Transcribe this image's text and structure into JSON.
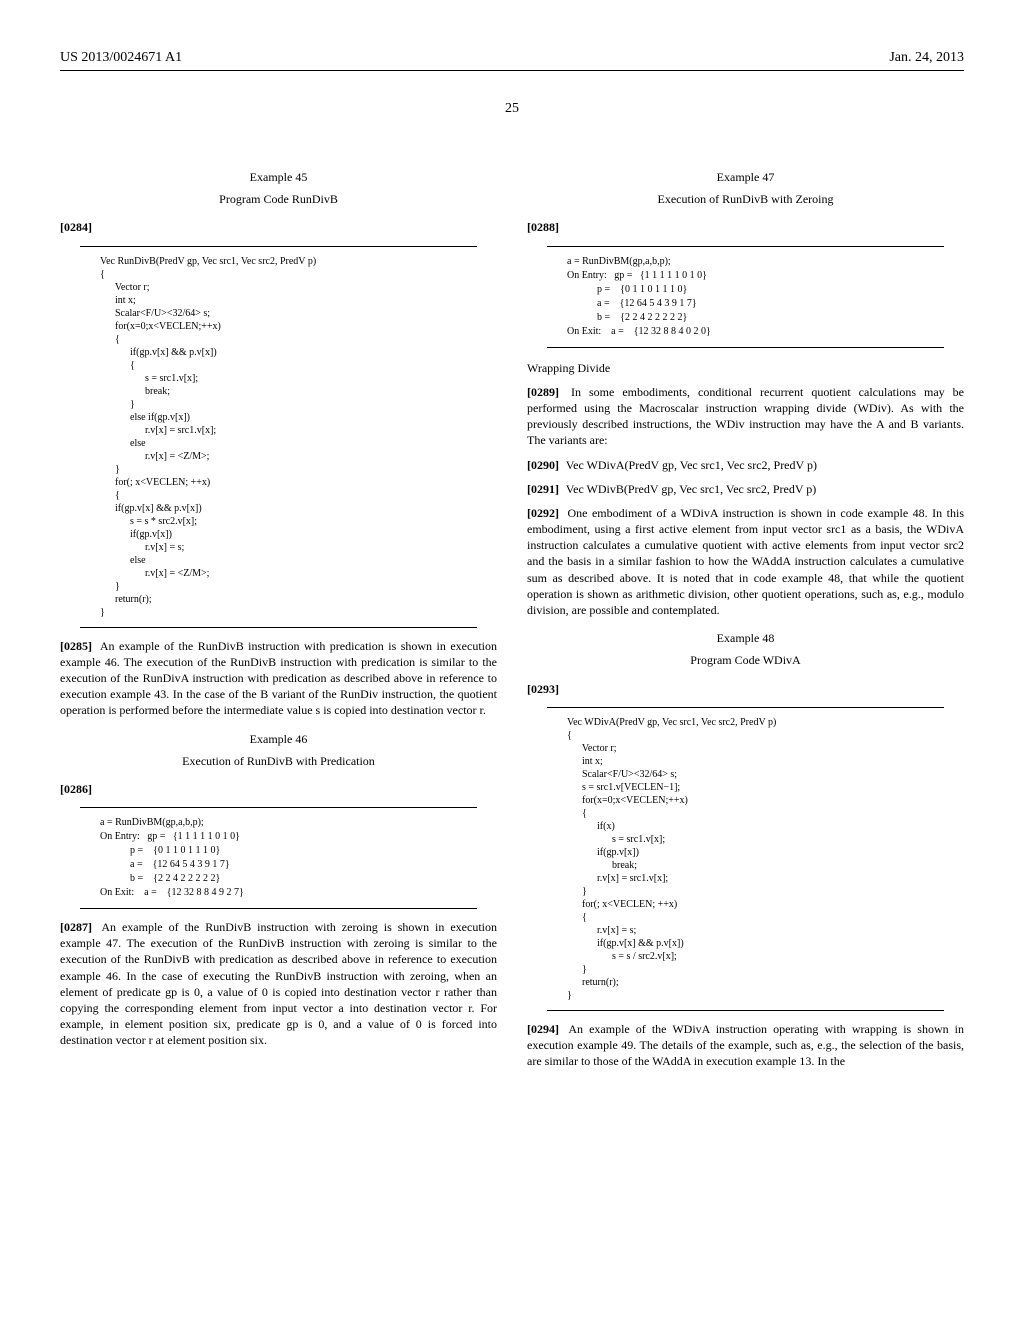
{
  "header": {
    "pub_number": "US 2013/0024671 A1",
    "date": "Jan. 24, 2013"
  },
  "page_number": "25",
  "left": {
    "ex45_heading": "Example 45",
    "ex45_title": "Program Code RunDivB",
    "para0284_num": "[0284]",
    "code45": "Vec RunDivB(PredV gp, Vec src1, Vec src2, PredV p)\n{\n      Vector r;\n      int x;\n      Scalar<F/U><32/64> s;\n      for(x=0;x<VECLEN;++x)\n      {\n            if(gp.v[x] && p.v[x])\n            {\n                  s = src1.v[x];\n                  break;\n            }\n            else if(gp.v[x])\n                  r.v[x] = src1.v[x];\n            else\n                  r.v[x] = <Z/M>;\n      }\n      for(; x<VECLEN; ++x)\n      {\n      if(gp.v[x] && p.v[x])\n            s = s * src2.v[x];\n            if(gp.v[x])\n                  r.v[x] = s;\n            else\n                  r.v[x] = <Z/M>;\n      }\n      return(r);\n}",
    "para0285_num": "[0285]",
    "para0285": "   An example of the RunDivB instruction with predication is shown in execution example 46. The execution of the RunDivB instruction with predication is similar to the execution of the RunDivA instruction with predication as described above in reference to execution example 43. In the case of the B variant of the RunDiv instruction, the quotient operation is performed before the intermediate value s is copied into destination vector r.",
    "ex46_heading": "Example 46",
    "ex46_title": "Execution of RunDivB with Predication",
    "para0286_num": "[0286]",
    "exec46": "a = RunDivBM(gp,a,b,p);\nOn Entry:   gp =   {1 1 1 1 1 0 1 0}\n            p =    {0 1 1 0 1 1 1 0}\n            a =    {12 64 5 4 3 9 1 7}\n            b =    {2 2 4 2 2 2 2 2}\nOn Exit:    a =    {12 32 8 8 4 9 2 7}",
    "para0287_num": "[0287]",
    "para0287": "   An example of the RunDivB instruction with zeroing is shown in execution example 47. The execution of the RunDivB instruction with zeroing is similar to the execution of the RunDivB with predication as described above in reference to execution example 46. In the case of executing the RunDivB instruction with zeroing, when an element of predicate gp is 0, a value of 0 is copied into destination vector r rather than copying the corresponding element from input vector a into destination vector r. For example, in element position six, predicate gp is 0, and a value of 0 is forced into destination vector r at element position six."
  },
  "right": {
    "ex47_heading": "Example 47",
    "ex47_title": "Execution of RunDivB with Zeroing",
    "para0288_num": "[0288]",
    "exec47": "a = RunDivBM(gp,a,b,p);\nOn Entry:   gp =   {1 1 1 1 1 0 1 0}\n            p =    {0 1 1 0 1 1 1 0}\n            a =    {12 64 5 4 3 9 1 7}\n            b =    {2 2 4 2 2 2 2 2}\nOn Exit:    a =    {12 32 8 8 4 0 2 0}",
    "wrapping_title": "Wrapping Divide",
    "para0289_num": "[0289]",
    "para0289": "   In some embodiments, conditional recurrent quotient calculations may be performed using the Macroscalar instruction wrapping divide (WDiv). As with the previously described instructions, the WDiv instruction may have the A and B variants. The variants are:",
    "para0290_num": "[0290]",
    "para0290": "   Vec WDivA(PredV gp, Vec src1, Vec src2, PredV p)",
    "para0291_num": "[0291]",
    "para0291": "   Vec WDivB(PredV gp, Vec src1, Vec src2, PredV p)",
    "para0292_num": "[0292]",
    "para0292": "   One embodiment of a WDivA instruction is shown in code example 48. In this embodiment, using a first active element from input vector src1 as a basis, the WDivA instruction calculates a cumulative quotient with active elements from input vector src2 and the basis in a similar fashion to how the WAddA instruction calculates a cumulative sum as described above. It is noted that in code example 48, that while the quotient operation is shown as arithmetic division, other quotient operations, such as, e.g., modulo division, are possible and contemplated.",
    "ex48_heading": "Example 48",
    "ex48_title": "Program Code WDivA",
    "para0293_num": "[0293]",
    "code48": "Vec WDivA(PredV gp, Vec src1, Vec src2, PredV p)\n{\n      Vector r;\n      int x;\n      Scalar<F/U><32/64> s;\n      s = src1.v[VECLEN−1];\n      for(x=0;x<VECLEN;++x)\n      {\n            if(x)\n                  s = src1.v[x];\n            if(gp.v[x])\n                  break;\n            r.v[x] = src1.v[x];\n      }\n      for(; x<VECLEN; ++x)\n      {\n            r.v[x] = s;\n            if(gp.v[x] && p.v[x])\n                  s = s / src2.v[x];\n      }\n      return(r);\n}",
    "para0294_num": "[0294]",
    "para0294": "   An example of the WDivA instruction operating with wrapping is shown in execution example 49. The details of the example, such as, e.g., the selection of the basis, are similar to those of the WAddA in execution example 13. In the"
  }
}
